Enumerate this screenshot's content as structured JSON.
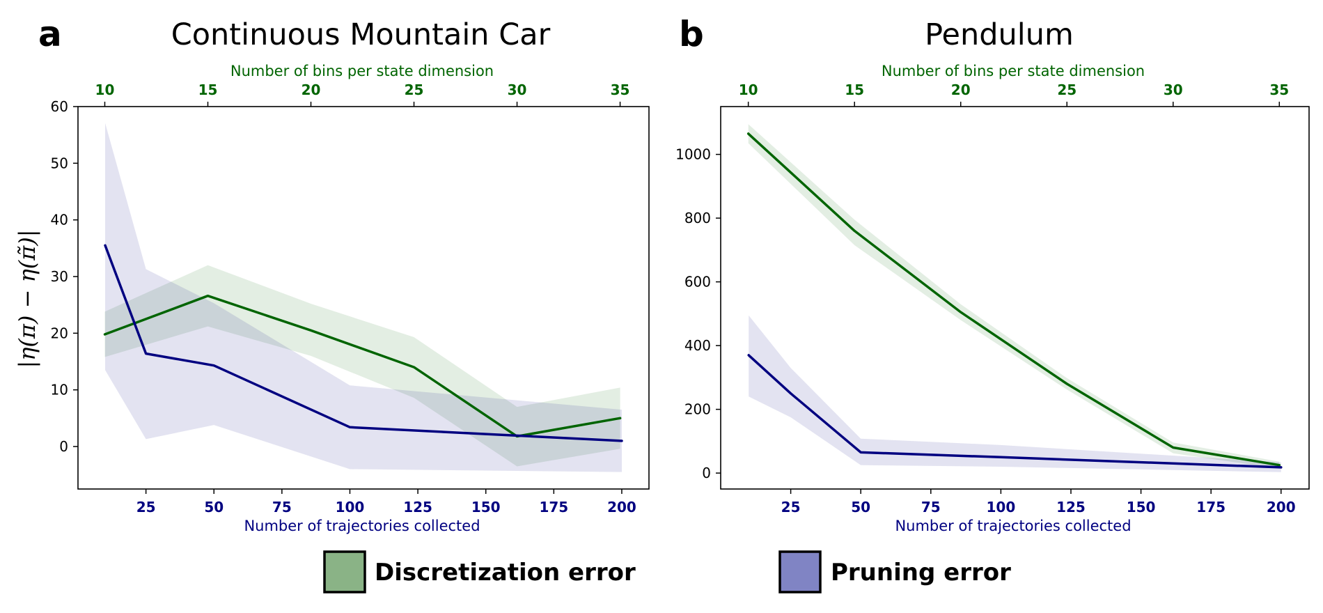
{
  "figure": {
    "legend": [
      {
        "label": "Discretization error",
        "color": "#8ab386"
      },
      {
        "label": "Pruning error",
        "color": "#8084c4"
      }
    ],
    "colors": {
      "discretization": "#006400",
      "pruning": "#000080",
      "discretization_band": "#006400",
      "pruning_band": "#000080"
    }
  },
  "chart_data": [
    {
      "type": "line",
      "panel_label": "a",
      "title": "Continuous Mountain Car",
      "ylabel": "|η(π) − η(π̃)|",
      "xlabel_bottom": "Number of trajectories collected",
      "xlabel_top": "Number of bins per state dimension",
      "xlim": [
        0,
        210
      ],
      "xticks_bottom": [
        25,
        50,
        75,
        100,
        125,
        150,
        175,
        200
      ],
      "xticks_top": [
        10,
        15,
        20,
        25,
        30,
        35
      ],
      "top_axis_range": [
        8.7,
        36.4
      ],
      "ylim": [
        -7.5,
        60
      ],
      "yticks": [
        0,
        10,
        20,
        30,
        40,
        50,
        60
      ],
      "series": [
        {
          "name": "Discretization error",
          "axis": "top",
          "x": [
            10,
            15,
            20,
            25,
            30,
            35
          ],
          "y": [
            19.8,
            26.6,
            20.5,
            14.0,
            1.8,
            5.0
          ],
          "lower": [
            15.8,
            21.2,
            16.0,
            8.6,
            -3.5,
            -0.4
          ],
          "upper": [
            23.8,
            32.0,
            25.2,
            19.3,
            7.0,
            10.4
          ]
        },
        {
          "name": "Pruning error",
          "axis": "bottom",
          "x": [
            10,
            25,
            50,
            100,
            200
          ],
          "y": [
            35.5,
            16.4,
            14.3,
            3.4,
            1.0
          ],
          "lower": [
            13.5,
            1.3,
            3.8,
            -4.0,
            -4.5
          ],
          "upper": [
            57.1,
            31.3,
            25.3,
            10.8,
            6.5
          ]
        }
      ]
    },
    {
      "type": "line",
      "panel_label": "b",
      "title": "Pendulum",
      "ylabel": "",
      "xlabel_bottom": "Number of trajectories collected",
      "xlabel_top": "Number of bins per state dimension",
      "xlim": [
        0,
        210
      ],
      "xticks_bottom": [
        25,
        50,
        75,
        100,
        125,
        150,
        175,
        200
      ],
      "xticks_top": [
        10,
        15,
        20,
        25,
        30,
        35
      ],
      "top_axis_range": [
        8.7,
        36.4
      ],
      "ylim": [
        -50,
        1150
      ],
      "yticks": [
        0,
        200,
        400,
        600,
        800,
        1000
      ],
      "series": [
        {
          "name": "Discretization error",
          "axis": "top",
          "x": [
            10,
            15,
            20,
            25,
            30,
            35
          ],
          "y": [
            1065,
            760,
            505,
            280,
            80,
            25
          ],
          "lower": [
            1035,
            715,
            480,
            262,
            62,
            14
          ],
          "upper": [
            1095,
            795,
            530,
            298,
            96,
            36
          ]
        },
        {
          "name": "Pruning error",
          "axis": "bottom",
          "x": [
            10,
            25,
            50,
            100,
            200
          ],
          "y": [
            370,
            250,
            65,
            50,
            18
          ],
          "lower": [
            240,
            175,
            25,
            20,
            3
          ],
          "upper": [
            495,
            330,
            108,
            88,
            34
          ]
        }
      ]
    }
  ]
}
